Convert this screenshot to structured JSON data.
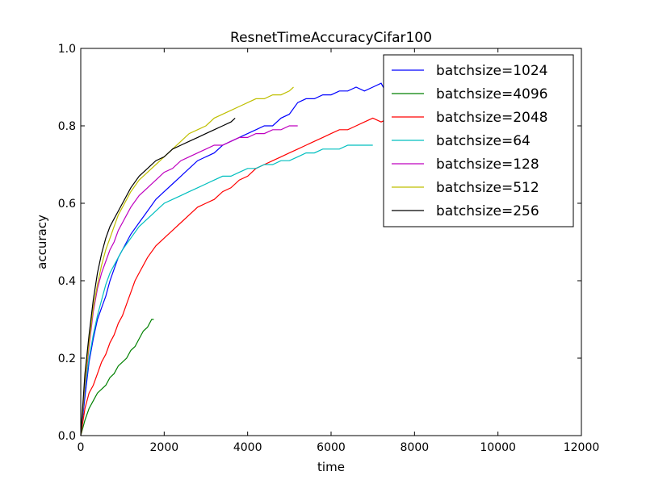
{
  "chart_data": {
    "type": "line",
    "title": "ResnetTimeAccuracyCifar100",
    "xlabel": "time",
    "ylabel": "accuracy",
    "xlim": [
      0,
      12000
    ],
    "ylim": [
      0.0,
      1.0
    ],
    "x_ticks": [
      0,
      2000,
      4000,
      6000,
      8000,
      10000,
      12000
    ],
    "x_tick_labels": [
      "0",
      "2000",
      "4000",
      "6000",
      "8000",
      "10000",
      "12000"
    ],
    "y_ticks": [
      0.0,
      0.2,
      0.4,
      0.6,
      0.8,
      1.0
    ],
    "y_tick_labels": [
      "0.0",
      "0.2",
      "0.4",
      "0.6",
      "0.8",
      "1.0"
    ],
    "grid": false,
    "legend_position": "top-right",
    "series": [
      {
        "name": "batchsize=1024",
        "color": "#0000ff",
        "x": [
          0,
          100,
          200,
          300,
          400,
          500,
          600,
          700,
          800,
          900,
          1000,
          1200,
          1400,
          1600,
          1800,
          2000,
          2200,
          2400,
          2600,
          2800,
          3000,
          3200,
          3400,
          3600,
          3800,
          4000,
          4200,
          4400,
          4600,
          4800,
          5000,
          5200,
          5400,
          5600,
          5800,
          6000,
          6200,
          6400,
          6600,
          6800,
          7000,
          7200,
          7300
        ],
        "y": [
          0.0,
          0.1,
          0.19,
          0.25,
          0.3,
          0.33,
          0.36,
          0.4,
          0.43,
          0.46,
          0.48,
          0.52,
          0.55,
          0.58,
          0.61,
          0.63,
          0.65,
          0.67,
          0.69,
          0.71,
          0.72,
          0.73,
          0.75,
          0.76,
          0.77,
          0.78,
          0.79,
          0.8,
          0.8,
          0.82,
          0.83,
          0.86,
          0.87,
          0.87,
          0.88,
          0.88,
          0.89,
          0.89,
          0.9,
          0.89,
          0.9,
          0.91,
          0.89
        ]
      },
      {
        "name": "batchsize=4096",
        "color": "#008000",
        "x": [
          0,
          100,
          200,
          300,
          400,
          500,
          600,
          700,
          800,
          900,
          1000,
          1100,
          1200,
          1300,
          1400,
          1500,
          1600,
          1700,
          1750
        ],
        "y": [
          0.0,
          0.04,
          0.07,
          0.09,
          0.11,
          0.12,
          0.13,
          0.15,
          0.16,
          0.18,
          0.19,
          0.2,
          0.22,
          0.23,
          0.25,
          0.27,
          0.28,
          0.3,
          0.3
        ]
      },
      {
        "name": "batchsize=2048",
        "color": "#ff0000",
        "x": [
          0,
          100,
          200,
          300,
          400,
          500,
          600,
          700,
          800,
          900,
          1000,
          1100,
          1200,
          1300,
          1400,
          1500,
          1600,
          1800,
          2000,
          2200,
          2400,
          2600,
          2800,
          3000,
          3200,
          3400,
          3600,
          3800,
          4000,
          4200,
          4400,
          4600,
          4800,
          5000,
          5200,
          5400,
          5600,
          5800,
          6000,
          6200,
          6400,
          6600,
          6800,
          7000,
          7200,
          7400
        ],
        "y": [
          0.0,
          0.07,
          0.11,
          0.13,
          0.16,
          0.19,
          0.21,
          0.24,
          0.26,
          0.29,
          0.31,
          0.34,
          0.37,
          0.4,
          0.42,
          0.44,
          0.46,
          0.49,
          0.51,
          0.53,
          0.55,
          0.57,
          0.59,
          0.6,
          0.61,
          0.63,
          0.64,
          0.66,
          0.67,
          0.69,
          0.7,
          0.71,
          0.72,
          0.73,
          0.74,
          0.75,
          0.76,
          0.77,
          0.78,
          0.79,
          0.79,
          0.8,
          0.81,
          0.82,
          0.81,
          0.82
        ]
      },
      {
        "name": "batchsize=64",
        "color": "#00bfbf",
        "x": [
          0,
          100,
          200,
          300,
          400,
          500,
          600,
          700,
          800,
          900,
          1000,
          1200,
          1400,
          1600,
          1800,
          2000,
          2200,
          2400,
          2600,
          2800,
          3000,
          3200,
          3400,
          3600,
          3800,
          4000,
          4200,
          4400,
          4600,
          4800,
          5000,
          5200,
          5400,
          5600,
          5800,
          6000,
          6200,
          6400,
          6600,
          6800,
          7000
        ],
        "y": [
          0.0,
          0.12,
          0.2,
          0.26,
          0.31,
          0.35,
          0.39,
          0.42,
          0.44,
          0.46,
          0.48,
          0.51,
          0.54,
          0.56,
          0.58,
          0.6,
          0.61,
          0.62,
          0.63,
          0.64,
          0.65,
          0.66,
          0.67,
          0.67,
          0.68,
          0.69,
          0.69,
          0.7,
          0.7,
          0.71,
          0.71,
          0.72,
          0.73,
          0.73,
          0.74,
          0.74,
          0.74,
          0.75,
          0.75,
          0.75,
          0.75
        ]
      },
      {
        "name": "batchsize=128",
        "color": "#bf00bf",
        "x": [
          0,
          100,
          200,
          300,
          400,
          500,
          600,
          700,
          800,
          900,
          1000,
          1200,
          1400,
          1600,
          1800,
          2000,
          2200,
          2400,
          2600,
          2800,
          3000,
          3200,
          3400,
          3600,
          3800,
          4000,
          4200,
          4400,
          4600,
          4800,
          5000,
          5200
        ],
        "y": [
          0.0,
          0.13,
          0.23,
          0.32,
          0.38,
          0.42,
          0.45,
          0.48,
          0.5,
          0.53,
          0.55,
          0.59,
          0.62,
          0.64,
          0.66,
          0.68,
          0.69,
          0.71,
          0.72,
          0.73,
          0.74,
          0.75,
          0.75,
          0.76,
          0.77,
          0.77,
          0.78,
          0.78,
          0.79,
          0.79,
          0.8,
          0.8
        ]
      },
      {
        "name": "batchsize=512",
        "color": "#bfbf00",
        "x": [
          0,
          100,
          200,
          300,
          400,
          500,
          600,
          700,
          800,
          900,
          1000,
          1200,
          1400,
          1600,
          1800,
          2000,
          2200,
          2400,
          2600,
          2800,
          3000,
          3200,
          3400,
          3600,
          3800,
          4000,
          4200,
          4400,
          4600,
          4800,
          5000,
          5100
        ],
        "y": [
          0.0,
          0.14,
          0.24,
          0.33,
          0.39,
          0.44,
          0.48,
          0.51,
          0.54,
          0.57,
          0.59,
          0.63,
          0.66,
          0.68,
          0.7,
          0.72,
          0.74,
          0.76,
          0.78,
          0.79,
          0.8,
          0.82,
          0.83,
          0.84,
          0.85,
          0.86,
          0.87,
          0.87,
          0.88,
          0.88,
          0.89,
          0.9
        ]
      },
      {
        "name": "batchsize=256",
        "color": "#000000",
        "x": [
          0,
          100,
          200,
          300,
          400,
          500,
          600,
          700,
          800,
          900,
          1000,
          1200,
          1400,
          1600,
          1800,
          2000,
          2200,
          2400,
          2600,
          2800,
          3000,
          3200,
          3400,
          3600,
          3700
        ],
        "y": [
          0.0,
          0.16,
          0.26,
          0.35,
          0.42,
          0.47,
          0.51,
          0.54,
          0.56,
          0.58,
          0.6,
          0.64,
          0.67,
          0.69,
          0.71,
          0.72,
          0.74,
          0.75,
          0.76,
          0.77,
          0.78,
          0.79,
          0.8,
          0.81,
          0.82
        ]
      }
    ]
  }
}
